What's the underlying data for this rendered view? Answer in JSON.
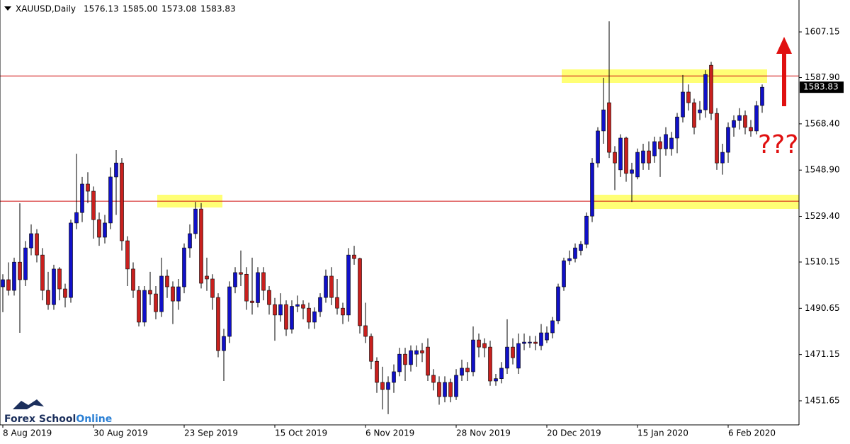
{
  "chart_data": {
    "type": "candlestick",
    "header": {
      "symbol": "XAUUSD,Daily",
      "ohlc": [
        "1576.13",
        "1585.00",
        "1573.08",
        "1583.83"
      ]
    },
    "categories": [
      "8 Aug 2019",
      null,
      null,
      null,
      null,
      null,
      null,
      null,
      null,
      null,
      null,
      null,
      null,
      null,
      null,
      null,
      "30 Aug 2019",
      null,
      null,
      null,
      null,
      null,
      null,
      null,
      null,
      null,
      null,
      null,
      null,
      null,
      null,
      null,
      "23 Sep 2019",
      null,
      null,
      null,
      null,
      null,
      null,
      null,
      null,
      null,
      null,
      null,
      null,
      null,
      null,
      null,
      "15 Oct 2019",
      null,
      null,
      null,
      null,
      null,
      null,
      null,
      null,
      null,
      null,
      null,
      null,
      null,
      null,
      null,
      "6 Nov 2019",
      null,
      null,
      null,
      null,
      null,
      null,
      null,
      null,
      null,
      null,
      null,
      null,
      null,
      null,
      null,
      "28 Nov 2019",
      null,
      null,
      null,
      null,
      null,
      null,
      null,
      null,
      null,
      null,
      null,
      null,
      null,
      null,
      null,
      "20 Dec 2019",
      null,
      null,
      null,
      null,
      null,
      null,
      null,
      null,
      null,
      null,
      null,
      null,
      null,
      null,
      null,
      "15 Jan 2020",
      null,
      null,
      null,
      null,
      null,
      null,
      null,
      null,
      null,
      null,
      null,
      null,
      null,
      null,
      null,
      "6 Feb 2020",
      null,
      null,
      null,
      null,
      null,
      null
    ],
    "open": [
      1499.7,
      1502.7,
      1498.2,
      1510.1,
      1502.7,
      1516.1,
      1522.1,
      1513.1,
      1498.2,
      1492.2,
      1507.2,
      1498.8,
      1495.2,
      1526.6,
      1531.0,
      1543.0,
      1540.0,
      1528.0,
      1520.6,
      1526.6,
      1546.0,
      1551.9,
      1519.1,
      1507.2,
      1498.2,
      1484.8,
      1498.2,
      1496.7,
      1489.2,
      1504.2,
      1499.7,
      1493.7,
      1499.7,
      1516.1,
      1522.1,
      1532.5,
      1504.2,
      1503.0,
      1495.2,
      1472.8,
      1478.8,
      1499.7,
      1505.7,
      1505.0,
      1493.7,
      1493.0,
      1505.7,
      1498.2,
      1492.2,
      1487.8,
      1492.2,
      1481.8,
      1491.5,
      1492.2,
      1490.7,
      1484.8,
      1489.2,
      1495.2,
      1504.2,
      1495.2,
      1490.7,
      1487.8,
      1513.1,
      1511.6,
      1483.3,
      1478.8,
      1468.3,
      1459.4,
      1456.4,
      1459.4,
      1463.9,
      1471.3,
      1466.9,
      1471.3,
      1472.8,
      1474.3,
      1462.4,
      1459.4,
      1453.4,
      1459.4,
      1453.4,
      1462.4,
      1465.4,
      1463.9,
      1477.3,
      1475.8,
      1474.3,
      1460.0,
      1461.0,
      1465.4,
      1474.3,
      1465.4,
      1475.8,
      1476.0,
      1476.4,
      1474.9,
      1477.3,
      1480.3,
      1485.4,
      1499.7,
      1510.7,
      1511.6,
      1515.0,
      1517.6,
      1529.5,
      1551.9,
      1565.4,
      1577.3,
      1556.4,
      1549.0,
      1562.4,
      1547.5,
      1546.0,
      1551.9,
      1557.0,
      1554.9,
      1560.9,
      1557.9,
      1557.9,
      1562.4,
      1571.3,
      1581.8,
      1577.3,
      1573.0,
      1574.3,
      1593.1,
      1572.8,
      1551.9,
      1556.4,
      1566.9,
      1569.8,
      1571.9,
      1566.9,
      1565.4,
      1576.13
    ],
    "high": [
      1505,
      1510,
      1512,
      1534.9,
      1519,
      1526,
      1524,
      1516,
      1506,
      1509,
      1508,
      1501,
      1528,
      1555.8,
      1546,
      1548,
      1542,
      1531,
      1530,
      1550,
      1557.3,
      1554,
      1521,
      1510,
      1500,
      1500,
      1506,
      1500,
      1512,
      1507,
      1502,
      1503,
      1518,
      1526,
      1535.5,
      1535,
      1512,
      1505,
      1497,
      1482,
      1502,
      1508,
      1515,
      1508,
      1512,
      1508,
      1508,
      1500,
      1495,
      1497,
      1494,
      1494,
      1496,
      1494,
      1493,
      1491,
      1497,
      1507,
      1508,
      1503,
      1493,
      1516,
      1517,
      1512,
      1493,
      1480,
      1470,
      1466,
      1462,
      1467,
      1474,
      1474,
      1475,
      1475,
      1476,
      1478,
      1465,
      1462,
      1462,
      1461,
      1465,
      1469,
      1468,
      1483,
      1480,
      1478,
      1477,
      1463,
      1468,
      1486,
      1478,
      1480,
      1480,
      1479,
      1479,
      1484,
      1483,
      1487,
      1501,
      1512,
      1515,
      1518,
      1519,
      1531,
      1554,
      1567,
      1587.8,
      1611.6,
      1559,
      1564,
      1563,
      1552,
      1558,
      1560,
      1561,
      1563,
      1563,
      1567,
      1565,
      1573,
      1589,
      1585,
      1579,
      1578,
      1591,
      1594.5,
      1575,
      1560,
      1569,
      1572,
      1575,
      1574,
      1570,
      1578,
      1585.0
    ],
    "low": [
      1489,
      1496,
      1496,
      1480.3,
      1500,
      1513,
      1510,
      1494,
      1490,
      1490,
      1494,
      1491,
      1493,
      1524,
      1527,
      1535,
      1520,
      1517,
      1518,
      1524,
      1530,
      1515,
      1500,
      1495,
      1483,
      1483,
      1492,
      1486,
      1487,
      1495,
      1484,
      1490,
      1497,
      1512,
      1520,
      1499,
      1498,
      1490,
      1470,
      1460,
      1476,
      1497,
      1500,
      1490,
      1488,
      1491,
      1494,
      1488,
      1477,
      1485,
      1479,
      1480,
      1489,
      1486,
      1482,
      1482,
      1487,
      1493,
      1492,
      1488,
      1484,
      1485,
      1509,
      1480,
      1476,
      1465,
      1455,
      1448,
      1446,
      1455,
      1462,
      1460,
      1464,
      1466,
      1468,
      1460,
      1456,
      1450,
      1451,
      1451,
      1452,
      1460,
      1460,
      1462,
      1470,
      1470,
      1458,
      1458,
      1459,
      1463,
      1467,
      1463,
      1473,
      1474,
      1473,
      1473,
      1476,
      1478,
      1484,
      1498,
      1509,
      1510,
      1513,
      1516,
      1527,
      1550,
      1560,
      1554,
      1540.5,
      1546,
      1544,
      1535.5,
      1545,
      1549,
      1549,
      1552,
      1546,
      1555,
      1555,
      1556,
      1569,
      1574,
      1564,
      1570,
      1571,
      1570,
      1549,
      1547,
      1552,
      1563,
      1566,
      1564,
      1563,
      1564,
      1573.08
    ],
    "close": [
      1502.7,
      1498.2,
      1510.1,
      1502.7,
      1516.1,
      1522.1,
      1513.1,
      1498.2,
      1492.2,
      1507.2,
      1498.8,
      1495.2,
      1526.6,
      1531.0,
      1543.0,
      1540.0,
      1528.0,
      1520.6,
      1526.6,
      1546.0,
      1551.9,
      1519.1,
      1507.2,
      1498.2,
      1484.8,
      1498.2,
      1496.7,
      1489.2,
      1504.2,
      1499.7,
      1493.7,
      1499.7,
      1516.1,
      1522.1,
      1532.5,
      1501.2,
      1503.0,
      1495.2,
      1472.8,
      1478.8,
      1499.7,
      1505.7,
      1505.0,
      1493.7,
      1493.0,
      1505.7,
      1498.2,
      1492.2,
      1487.8,
      1492.2,
      1481.8,
      1491.5,
      1492.2,
      1490.7,
      1484.8,
      1489.2,
      1495.2,
      1504.2,
      1495.2,
      1490.7,
      1487.8,
      1513.1,
      1511.6,
      1483.3,
      1478.8,
      1468.3,
      1459.4,
      1456.4,
      1459.4,
      1463.9,
      1471.3,
      1466.9,
      1472.8,
      1472.8,
      1471.8,
      1462.4,
      1459.4,
      1453.4,
      1459.4,
      1453.4,
      1462.4,
      1465.4,
      1463.9,
      1477.3,
      1474.3,
      1474.0,
      1460.0,
      1461.0,
      1465.4,
      1474.3,
      1469.8,
      1475.8,
      1476.4,
      1476.4,
      1475.8,
      1480.3,
      1480.3,
      1485.4,
      1499.7,
      1510.7,
      1511.6,
      1516.1,
      1517.6,
      1529.5,
      1551.9,
      1565.4,
      1574.3,
      1556.4,
      1551.9,
      1562.4,
      1547.5,
      1549.0,
      1556.4,
      1557.0,
      1551.9,
      1560.9,
      1557.9,
      1563.9,
      1562.4,
      1571.3,
      1581.8,
      1577.3,
      1566.9,
      1574.3,
      1589.2,
      1572.8,
      1551.9,
      1556.4,
      1566.9,
      1569.8,
      1571.9,
      1566.9,
      1565.4,
      1576.1,
      1583.83
    ],
    "up_color": "#1010c8",
    "down_color": "#c8201e",
    "wick_color": "#000000",
    "ylim": [
      1441.5,
      1620.6
    ],
    "yticks": [
      1607.15,
      {
        "value": 1587.9,
        "label": "1587.90"
      },
      {
        "value": 1568.4,
        "label": "1568.40"
      },
      {
        "value": 1548.9,
        "label": "1548.90"
      },
      {
        "value": 1529.4,
        "label": "1529.40"
      },
      1510.15,
      1490.65,
      1471.15,
      1451.65
    ],
    "grid": false,
    "current_price": {
      "value": 1583.83,
      "label": "1583.83"
    },
    "hlines": [
      1588.6,
      1535.8
    ],
    "hline_color": "#d01010",
    "annotation": "???",
    "logo": {
      "part1": "Forex School",
      "part2": "Online"
    }
  }
}
